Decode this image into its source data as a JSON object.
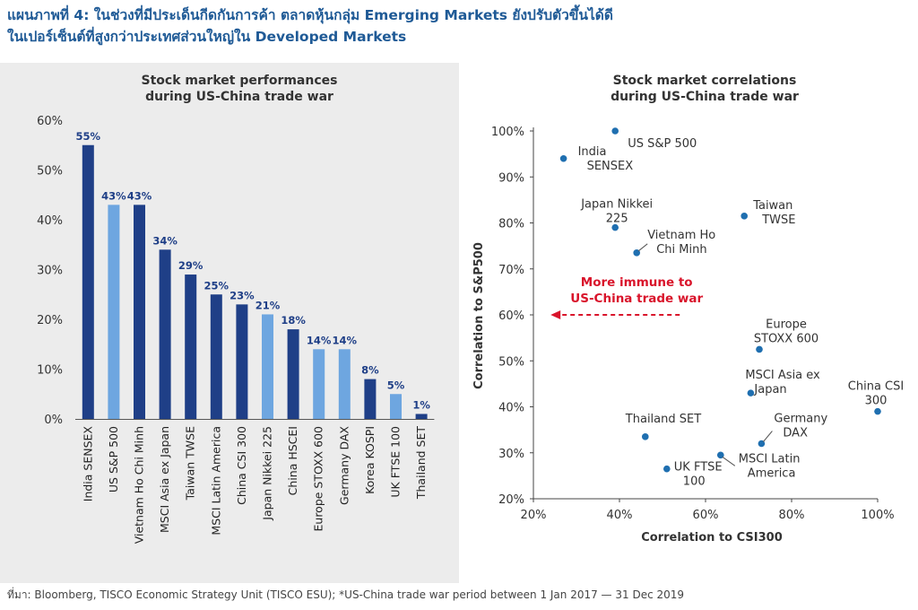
{
  "header": {
    "title_line1": "แผนภาพที่ 4: ในช่วงที่มีประเด็นกีดกันการค้า ตลาดหุ้นกลุ่ม Emerging Markets ยังปรับตัวขึ้นได้ดี",
    "title_line2": "ในเปอร์เซ็นต์ที่สูงกว่าประเทศส่วนใหญ่ใน Developed Markets"
  },
  "footer": {
    "source": "ที่มา: Bloomberg, TISCO Economic Strategy Unit (TISCO ESU); *US-China trade war period between 1 Jan 2017 — 31 Dec 2019"
  },
  "colors": {
    "dark": "#1f3f87",
    "light": "#6ea6e0",
    "title": "#1f5a96",
    "annotation": "#d9142b",
    "dot": "#1f6fb0"
  },
  "chart_data": [
    {
      "type": "bar",
      "title_line1": "Stock market performances",
      "title_line2": "during US-China trade war",
      "categories": [
        "India SENSEX",
        "US S&P 500",
        "Vietnam Ho Chi Minh",
        "MSCI Asia ex Japan",
        "Taiwan TWSE",
        "MSCI Latin America",
        "China CSI 300",
        "Japan Nikkei 225",
        "China HSCEI",
        "Europe STOXX 600",
        "Germany DAX",
        "Korea KOSPI",
        "UK FTSE 100",
        "Thailand SET"
      ],
      "values": [
        55,
        43,
        43,
        34,
        29,
        25,
        23,
        21,
        18,
        14,
        14,
        8,
        5,
        1
      ],
      "value_labels": [
        "55%",
        "43%",
        "43%",
        "34%",
        "29%",
        "25%",
        "23%",
        "21%",
        "18%",
        "14%",
        "14%",
        "8%",
        "5%",
        "1%"
      ],
      "shade": [
        "dark",
        "light",
        "dark",
        "dark",
        "dark",
        "dark",
        "dark",
        "light",
        "dark",
        "light",
        "light",
        "dark",
        "light",
        "dark"
      ],
      "ylim": [
        0,
        60
      ],
      "yticks": [
        0,
        10,
        20,
        30,
        40,
        50,
        60
      ],
      "ytick_labels": [
        "0%",
        "10%",
        "20%",
        "30%",
        "40%",
        "50%",
        "60%"
      ],
      "xlabel": "",
      "ylabel": ""
    },
    {
      "type": "scatter",
      "title_line1": "Stock market correlations",
      "title_line2": "during US-China trade war",
      "xlabel": "Correlation to CSI300",
      "ylabel": "Correlation to S&P500",
      "xlim": [
        20,
        100
      ],
      "ylim": [
        20,
        100
      ],
      "xticks": [
        20,
        40,
        60,
        80,
        100
      ],
      "xtick_labels": [
        "20%",
        "40%",
        "60%",
        "80%",
        "100%"
      ],
      "yticks": [
        20,
        30,
        40,
        50,
        60,
        70,
        80,
        90,
        100
      ],
      "ytick_labels": [
        "20%",
        "30%",
        "40%",
        "50%",
        "60%",
        "70%",
        "80%",
        "90%",
        "100%"
      ],
      "points": [
        {
          "name": "US S&P 500",
          "lines": [
            "US S&P 500"
          ],
          "x": 39,
          "y": 100,
          "label_pos": "below-right"
        },
        {
          "name": "India SENSEX",
          "lines": [
            "India",
            "SENSEX"
          ],
          "x": 27,
          "y": 94,
          "label_pos": "right"
        },
        {
          "name": "Japan Nikkei 225",
          "lines": [
            "Japan Nikkei",
            "225"
          ],
          "x": 39,
          "y": 79,
          "label_pos": "above"
        },
        {
          "name": "Vietnam Ho Chi Minh",
          "lines": [
            "Vietnam Ho",
            "Chi Minh"
          ],
          "x": 44,
          "y": 73.5,
          "label_pos": "right-leader"
        },
        {
          "name": "Taiwan TWSE",
          "lines": [
            "Taiwan",
            "TWSE"
          ],
          "x": 69,
          "y": 81.5,
          "label_pos": "right"
        },
        {
          "name": "Europe STOXX 600",
          "lines": [
            "Europe",
            "STOXX 600"
          ],
          "x": 72.5,
          "y": 52.5,
          "label_pos": "above-right"
        },
        {
          "name": "MSCI Asia ex Japan",
          "lines": [
            "MSCI Asia ex",
            "Japan"
          ],
          "x": 70.5,
          "y": 43,
          "label_pos": "right"
        },
        {
          "name": "China CSI 300",
          "lines": [
            "China CSI",
            "300"
          ],
          "x": 100,
          "y": 39,
          "label_pos": "above-left"
        },
        {
          "name": "Thailand SET",
          "lines": [
            "Thailand SET"
          ],
          "x": 46,
          "y": 33.5,
          "label_pos": "above"
        },
        {
          "name": "Germany DAX",
          "lines": [
            "Germany",
            "DAX"
          ],
          "x": 73,
          "y": 32,
          "label_pos": "right-leader"
        },
        {
          "name": "MSCI Latin America",
          "lines": [
            "MSCI Latin",
            "America"
          ],
          "x": 63.5,
          "y": 29.5,
          "label_pos": "right-leader"
        },
        {
          "name": "UK FTSE 100",
          "lines": [
            "UK FTSE",
            "100"
          ],
          "x": 51,
          "y": 26.5,
          "label_pos": "right"
        }
      ],
      "annotation": {
        "lines": [
          "More immune to",
          "US-China trade war"
        ],
        "arrow_from_x": 54,
        "arrow_to_x": 24,
        "arrow_y": 60,
        "text_center_x": 44
      }
    }
  ]
}
